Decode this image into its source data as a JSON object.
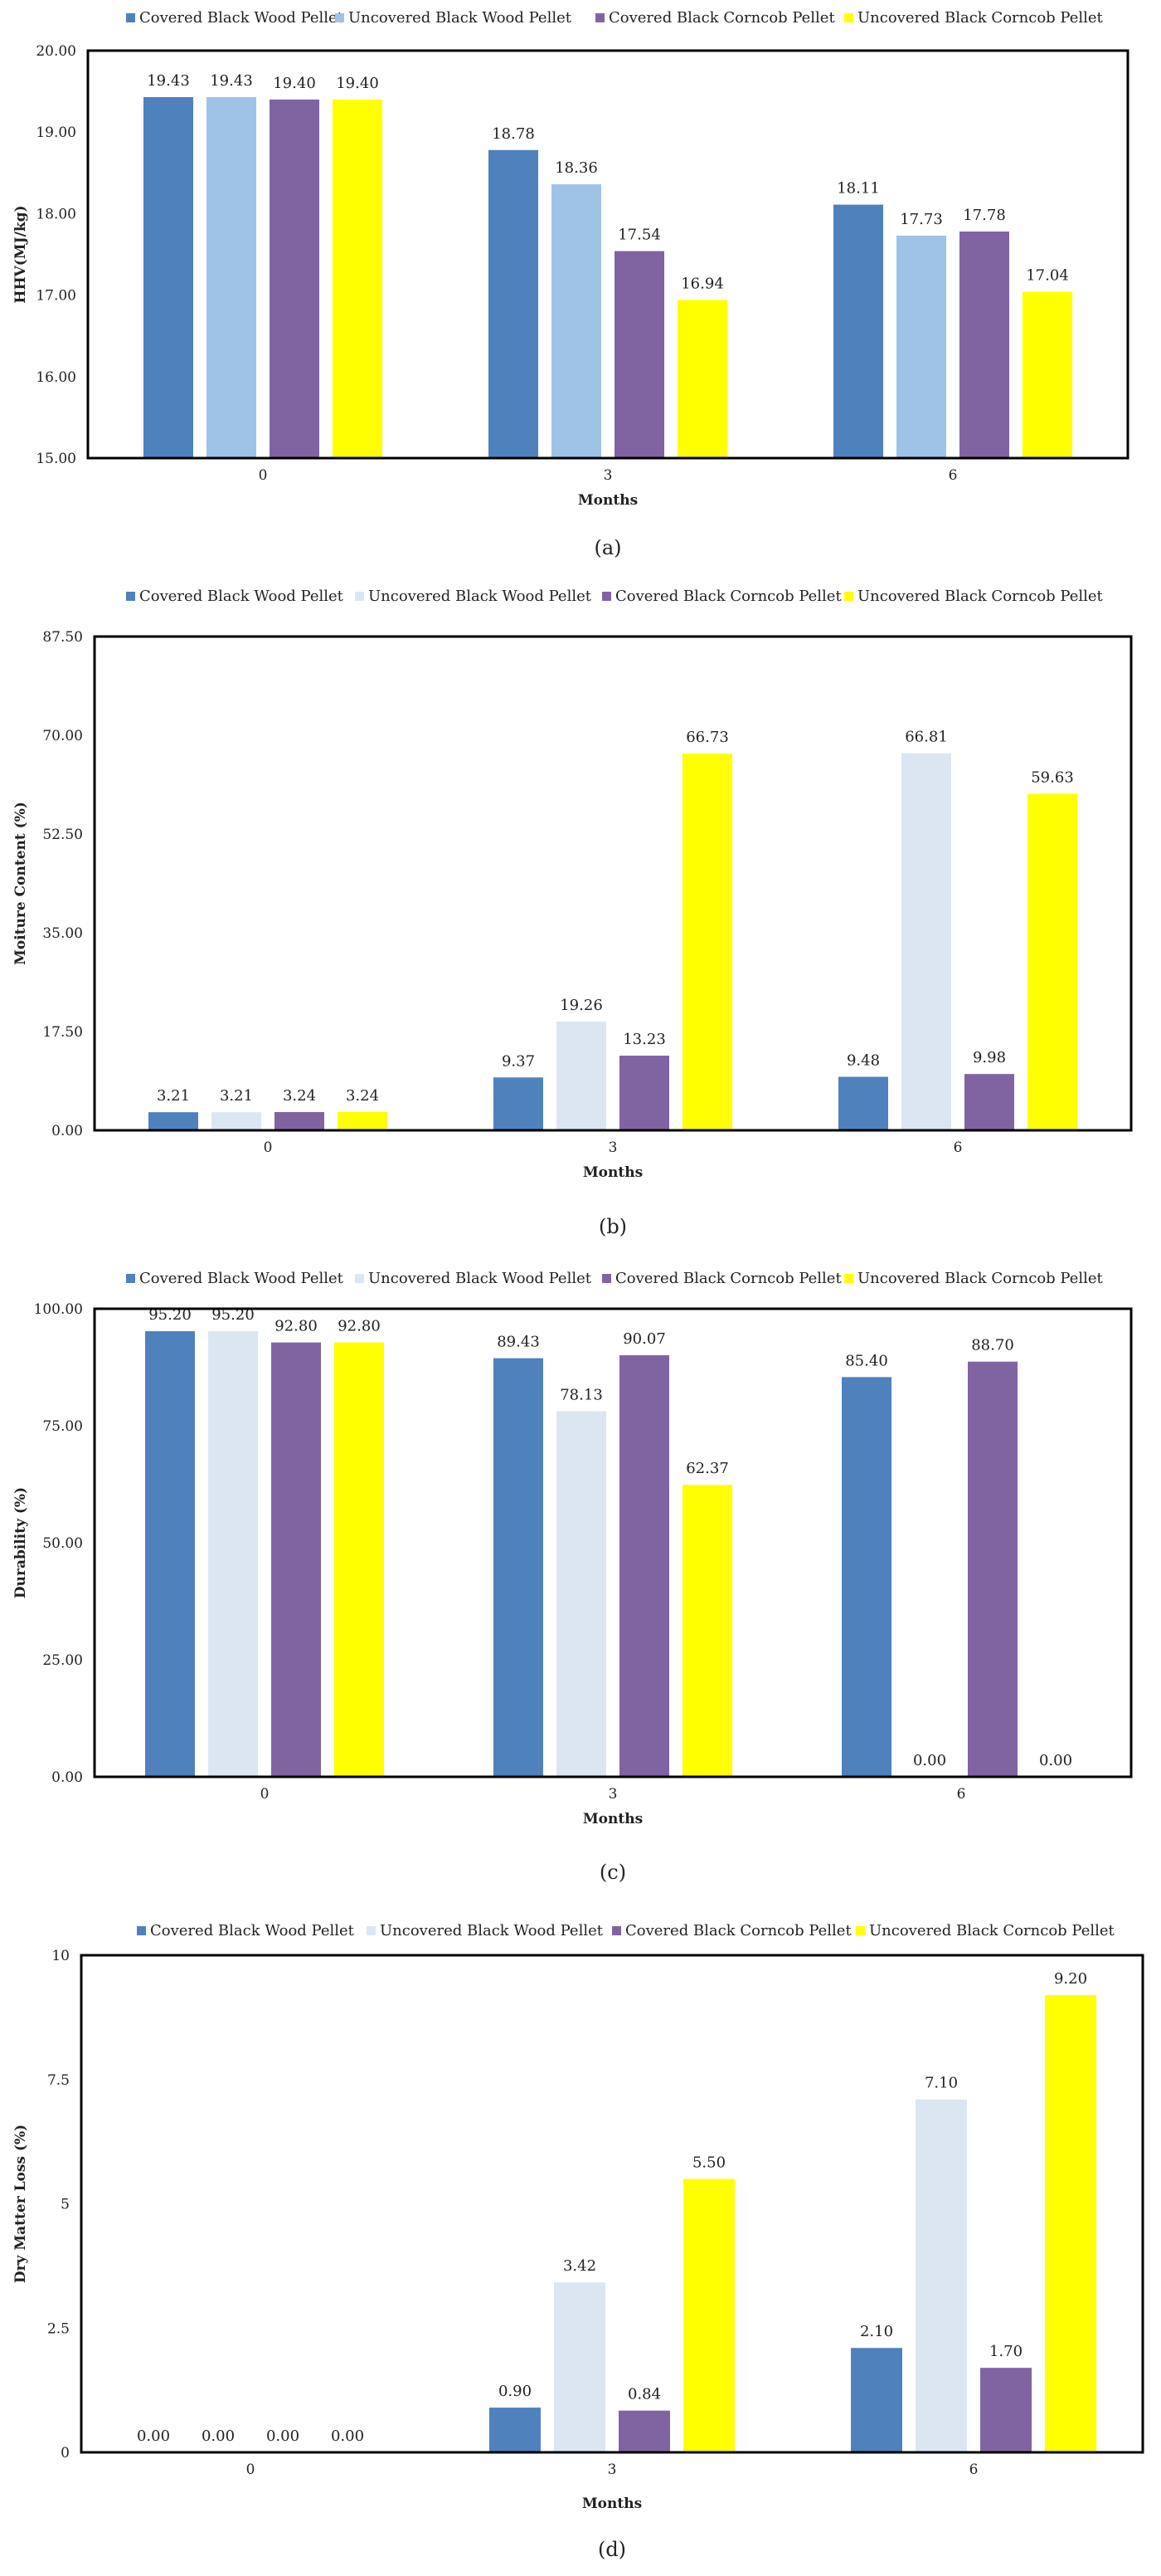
{
  "chart_data": [
    {
      "type": "bar",
      "caption": "(a)",
      "categories": [
        "0",
        "3",
        "6"
      ],
      "xlabel": "Months",
      "ylabel": "HHV(MJ/kg)",
      "ylim": [
        15,
        20
      ],
      "yticks": [
        "15.00",
        "16.00",
        "17.00",
        "18.00",
        "19.00",
        "20.00"
      ],
      "decimals": 2,
      "series": [
        {
          "name": "Covered Black Wood Pellet",
          "color": "#4f81bd",
          "values": [
            19.43,
            18.78,
            18.11
          ]
        },
        {
          "name": "Uncovered Black Wood Pellet",
          "color": "#9fc3e7",
          "values": [
            19.43,
            18.36,
            17.73
          ]
        },
        {
          "name": "Covered Black Corncob Pellet",
          "color": "#8064a2",
          "values": [
            19.4,
            17.54,
            17.78
          ]
        },
        {
          "name": "Uncovered Black Corncob Pellet",
          "color": "#ffff00",
          "values": [
            19.4,
            16.94,
            17.04
          ]
        }
      ]
    },
    {
      "type": "bar",
      "caption": "(b)",
      "categories": [
        "0",
        "3",
        "6"
      ],
      "xlabel": "Months",
      "ylabel": "Moiture Content (%)",
      "ylim": [
        0,
        87.5
      ],
      "yticks": [
        "0.00",
        "17.50",
        "35.00",
        "52.50",
        "70.00",
        "87.50"
      ],
      "decimals": 2,
      "series": [
        {
          "name": "Covered Black Wood Pellet",
          "color": "#4f81bd",
          "values": [
            3.21,
            9.37,
            9.48
          ]
        },
        {
          "name": "Uncovered Black Wood Pellet",
          "color": "#dce6f2",
          "values": [
            3.21,
            19.26,
            66.81
          ]
        },
        {
          "name": "Covered Black Corncob Pellet",
          "color": "#8064a2",
          "values": [
            3.24,
            13.23,
            9.98
          ]
        },
        {
          "name": "Uncovered Black Corncob Pellet",
          "color": "#ffff00",
          "values": [
            3.24,
            66.73,
            59.63
          ]
        }
      ]
    },
    {
      "type": "bar",
      "caption": "(c)",
      "categories": [
        "0",
        "3",
        "6"
      ],
      "xlabel": "Months",
      "ylabel": "Durability (%)",
      "ylim": [
        0,
        100
      ],
      "yticks": [
        "0.00",
        "25.00",
        "50.00",
        "75.00",
        "100.00"
      ],
      "decimals": 2,
      "series": [
        {
          "name": "Covered Black Wood Pellet",
          "color": "#4f81bd",
          "values": [
            95.2,
            89.43,
            85.4
          ]
        },
        {
          "name": "Uncovered Black Wood Pellet",
          "color": "#dce6f2",
          "values": [
            95.2,
            78.13,
            0.0
          ]
        },
        {
          "name": "Covered Black Corncob Pellet",
          "color": "#8064a2",
          "values": [
            92.8,
            90.07,
            88.7
          ]
        },
        {
          "name": "Uncovered Black Corncob Pellet",
          "color": "#ffff00",
          "values": [
            92.8,
            62.37,
            0.0
          ]
        }
      ]
    },
    {
      "type": "bar",
      "caption": "(d)",
      "categories": [
        "0",
        "3",
        "6"
      ],
      "xlabel": "Months",
      "ylabel": "Dry Matter Loss (%)",
      "ylim": [
        0,
        10
      ],
      "yticks": [
        "0",
        "2.5",
        "5",
        "7.5",
        "10"
      ],
      "decimals": 2,
      "series": [
        {
          "name": "Covered Black Wood Pellet",
          "color": "#4f81bd",
          "values": [
            0.0,
            0.9,
            2.1
          ]
        },
        {
          "name": "Uncovered Black Wood Pellet",
          "color": "#dce6f2",
          "values": [
            0.0,
            3.42,
            7.1
          ]
        },
        {
          "name": "Covered Black Corncob Pellet",
          "color": "#8064a2",
          "values": [
            0.0,
            0.84,
            1.7
          ]
        },
        {
          "name": "Uncovered Black Corncob Pellet",
          "color": "#ffff00",
          "values": [
            0.0,
            5.5,
            9.2
          ]
        }
      ]
    }
  ]
}
